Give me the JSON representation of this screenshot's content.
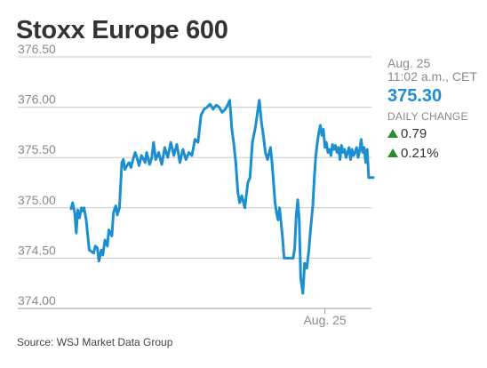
{
  "header": {
    "title": "Stoxx Europe 600"
  },
  "quote": {
    "date": "Aug. 25",
    "time": "11:02 a.m., CET",
    "price": "375.30",
    "change_label": "DAILY CHANGE",
    "change_points": "0.79",
    "change_percent": "0.21%",
    "direction_icon": "up-triangle-icon",
    "up_color": "#2e8b2e"
  },
  "footer": {
    "source": "Source: WSJ Market Data Group"
  },
  "chart_data": {
    "type": "line",
    "title": "Stoxx Europe 600",
    "xlabel": "",
    "ylabel": "",
    "ylim": [
      374.0,
      376.5
    ],
    "yticks": [
      374.0,
      374.5,
      375.0,
      375.5,
      376.0,
      376.5
    ],
    "ytick_labels": [
      "374.00",
      "374.50",
      "375.00",
      "375.50",
      "376.00",
      "376.50"
    ],
    "grid": true,
    "line_color": "#1c8fd0",
    "x_range": [
      0,
      100
    ],
    "x_ticks": [
      {
        "x": 84,
        "label": "Aug. 25"
      }
    ],
    "series": [
      {
        "x": [
          0,
          0.5,
          1.2,
          1.7,
          2.2,
          2.8,
          3.4,
          3.9,
          4.3,
          5.0,
          6.0,
          7.5,
          8.0,
          8.7,
          9.2,
          10.0,
          10.5,
          11.2,
          12.0,
          12.5,
          13.5,
          14.0,
          14.8,
          15.3,
          16.0,
          16.8,
          17.3,
          17.8,
          18.5,
          19.2,
          19.8,
          20.5,
          21.2,
          21.8,
          22.5,
          23.3,
          24.0,
          24.5,
          25.0,
          26.0,
          26.7,
          27.3,
          28.0,
          29.0,
          30.0,
          31.0,
          32.0,
          33.0,
          34.0,
          35.0,
          36.0,
          37.0,
          38.0,
          39.0,
          40.0,
          41.0,
          42.0,
          43.0,
          44.0,
          45.0,
          46.0,
          47.0,
          48.0,
          49.0,
          50.0,
          51.0,
          51.8,
          52.5,
          53.2,
          53.8,
          54.5,
          55.2,
          55.8,
          56.5,
          57.5,
          58.5,
          59.2,
          60.0,
          61.0,
          61.7,
          62.3,
          63.0,
          63.7,
          64.3,
          65.0,
          66.0,
          66.5,
          67.0,
          67.5,
          68.0,
          68.5,
          69.0,
          69.5,
          70.0,
          70.5,
          71.0,
          71.5,
          72.0,
          72.5,
          73.0,
          73.5,
          74.0,
          74.5,
          75.0,
          75.5,
          76.0,
          76.7,
          77.3,
          78.0,
          78.7,
          79.3,
          80.0,
          80.5,
          81.0,
          81.5,
          82.0,
          82.5,
          83.0,
          83.5,
          84.0,
          84.5,
          85.0,
          85.5,
          86.0,
          86.5,
          87.0,
          87.5,
          88.0,
          88.5,
          89.0,
          89.5,
          90.0,
          90.5,
          91.0,
          91.5,
          92.0,
          92.5,
          93.0,
          93.5,
          94.0,
          94.5,
          95.0,
          95.5,
          96.0,
          96.5,
          97.0,
          97.5,
          98.0,
          98.5,
          99.2,
          100
        ],
        "y": [
          374.99,
          375.05,
          374.95,
          374.75,
          374.98,
          374.9,
          375.0,
          374.97,
          375.0,
          374.88,
          374.58,
          374.55,
          374.62,
          374.6,
          374.47,
          374.58,
          374.53,
          374.68,
          374.62,
          374.78,
          374.72,
          374.95,
          375.02,
          374.93,
          375.0,
          375.45,
          375.48,
          375.38,
          375.42,
          375.45,
          375.4,
          375.48,
          375.55,
          375.5,
          375.42,
          375.52,
          375.48,
          375.45,
          375.55,
          375.43,
          375.5,
          375.65,
          375.48,
          375.55,
          375.43,
          375.6,
          375.5,
          375.65,
          375.52,
          375.63,
          375.45,
          375.58,
          375.48,
          375.55,
          375.52,
          375.68,
          375.65,
          375.92,
          375.98,
          376.0,
          376.03,
          375.98,
          376.02,
          376.0,
          375.95,
          375.98,
          376.02,
          376.07,
          375.78,
          375.65,
          375.45,
          375.15,
          375.05,
          375.12,
          375.0,
          375.25,
          375.3,
          375.65,
          375.8,
          375.95,
          376.07,
          375.85,
          375.7,
          375.55,
          375.48,
          375.6,
          375.45,
          375.25,
          375.05,
          374.95,
          374.88,
          375.0,
          374.85,
          374.7,
          374.5,
          374.5,
          374.5,
          374.5,
          374.5,
          374.5,
          374.5,
          374.6,
          374.92,
          375.08,
          374.88,
          374.3,
          374.15,
          374.45,
          374.4,
          374.58,
          374.8,
          375.02,
          375.3,
          375.52,
          375.65,
          375.75,
          375.82,
          375.72,
          375.78,
          375.6,
          375.65,
          375.55,
          375.58,
          375.52,
          375.63,
          375.58,
          375.62,
          375.55,
          375.6,
          375.48,
          375.62,
          375.55,
          375.58,
          375.5,
          375.55,
          375.6,
          375.48,
          375.58,
          375.52,
          375.55,
          375.6,
          375.5,
          375.57,
          375.68,
          375.55,
          375.6,
          375.45,
          375.58,
          375.3,
          375.3,
          375.3
        ]
      }
    ]
  }
}
